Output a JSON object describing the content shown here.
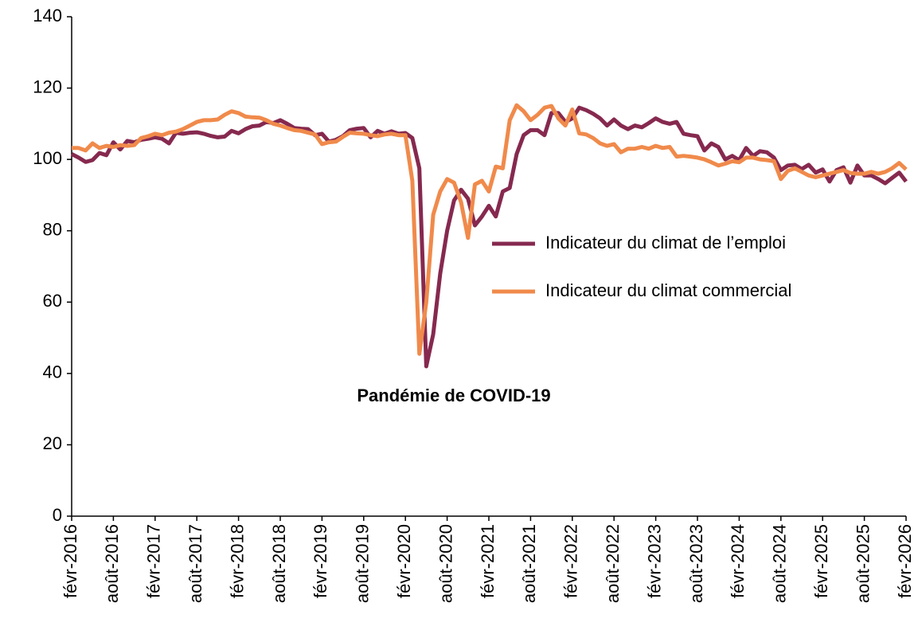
{
  "chart_data": {
    "type": "line",
    "annotation": "Pandémie de COVID-19",
    "categories": [
      "févr-2016",
      null,
      null,
      null,
      null,
      null,
      "août-2016",
      null,
      null,
      null,
      null,
      null,
      "févr-2017",
      null,
      null,
      null,
      null,
      null,
      "août-2017",
      null,
      null,
      null,
      null,
      null,
      "févr-2018",
      null,
      null,
      null,
      null,
      null,
      "août-2018",
      null,
      null,
      null,
      null,
      null,
      "févr-2019",
      null,
      null,
      null,
      null,
      null,
      "août-2019",
      null,
      null,
      null,
      null,
      null,
      "févr-2020",
      null,
      null,
      null,
      null,
      null,
      "août-2020",
      null,
      null,
      null,
      null,
      null,
      "févr-2021",
      null,
      null,
      null,
      null,
      null,
      "août-2021",
      null,
      null,
      null,
      null,
      null,
      "févr-2022",
      null,
      null,
      null,
      null,
      null,
      "août-2022",
      null,
      null,
      null,
      null,
      null,
      "févr-2023",
      null,
      null,
      null,
      null,
      null,
      "août-2023",
      null,
      null,
      null,
      null,
      null,
      "févr-2024",
      null,
      null,
      null,
      null,
      null,
      "août-2024",
      null,
      null,
      null,
      null,
      null,
      "févr-2025",
      null,
      null,
      null,
      null,
      null,
      "août-2025",
      null,
      null,
      null,
      null,
      null,
      "févr-2026"
    ],
    "series": [
      {
        "name": "Indicateur du climat de l’emploi",
        "color": "#86294f",
        "values": [
          101.5,
          100.5,
          99.3,
          99.8,
          101.8,
          101.2,
          104.8,
          102.8,
          105.2,
          104.8,
          105.5,
          105.8,
          106.2,
          105.8,
          104.5,
          107.5,
          107.2,
          107.5,
          107.6,
          107.2,
          106.6,
          106.2,
          106.4,
          108.0,
          107.3,
          108.5,
          109.3,
          109.5,
          110.5,
          110.2,
          111.0,
          110.0,
          108.8,
          108.6,
          108.5,
          106.8,
          107.2,
          105.0,
          105.5,
          106.5,
          108.2,
          108.6,
          108.8,
          106.2,
          108.0,
          107.2,
          107.9,
          107.2,
          107.4,
          106.0,
          97.5,
          42,
          51,
          68,
          80,
          88.5,
          91.5,
          89,
          81.5,
          84,
          87,
          84,
          91,
          92,
          101.5,
          106.8,
          108.2,
          108.2,
          106.8,
          113,
          113,
          110.5,
          111.5,
          114.5,
          113.8,
          112.8,
          111.5,
          109.5,
          111.2,
          109.5,
          108.5,
          109.5,
          109,
          110.2,
          111.5,
          110.5,
          110,
          110.5,
          107.2,
          106.8,
          106.5,
          102.5,
          104.5,
          103.5,
          100,
          101,
          99.8,
          103.2,
          101,
          102.3,
          102,
          100.5,
          97,
          98.3,
          98.5,
          97.3,
          98.5,
          96.3,
          97.2,
          93.8,
          97,
          97.8,
          93.5,
          98.3,
          95.5,
          95.5,
          94.5,
          93.3,
          94.8,
          96.3,
          93.8
        ]
      },
      {
        "name": "Indicateur du climat commercial",
        "color": "#f08a4b",
        "values": [
          103.2,
          103.2,
          102.5,
          104.5,
          103.2,
          103.8,
          103.5,
          104,
          103.8,
          104,
          106,
          106.5,
          107.2,
          106.8,
          107.5,
          107.8,
          108.5,
          109.5,
          110.5,
          111,
          111,
          111.2,
          112.5,
          113.5,
          113,
          112,
          111.8,
          111.7,
          111,
          110,
          109.5,
          108.8,
          108.2,
          108,
          107.5,
          107,
          104.3,
          104.8,
          105,
          106.3,
          107.5,
          107.3,
          107.2,
          106.8,
          106.5,
          107,
          107.2,
          106.8,
          106.8,
          94,
          45.5,
          60,
          84.5,
          91,
          94.5,
          93.5,
          88,
          78,
          93,
          94,
          91,
          98,
          97.5,
          111,
          115.2,
          113.5,
          111,
          112.5,
          114.5,
          115,
          111.5,
          109.5,
          114,
          107.3,
          107,
          106,
          104.5,
          103.8,
          104.3,
          102,
          103,
          103,
          103.5,
          103,
          103.8,
          103.2,
          103.5,
          100.8,
          101,
          100.8,
          100.5,
          100,
          99.2,
          98.3,
          98.8,
          99.5,
          99.2,
          100.5,
          100.5,
          100,
          99.8,
          99.5,
          94.5,
          96.8,
          97.5,
          96.5,
          95.5,
          95,
          95.5,
          96,
          96.5,
          97,
          96.2,
          96,
          96,
          96.5,
          96,
          96.5,
          97.5,
          99,
          97.2
        ]
      }
    ],
    "ylim": [
      0,
      140
    ],
    "yticks": [
      0,
      20,
      40,
      60,
      80,
      100,
      120,
      140
    ]
  }
}
